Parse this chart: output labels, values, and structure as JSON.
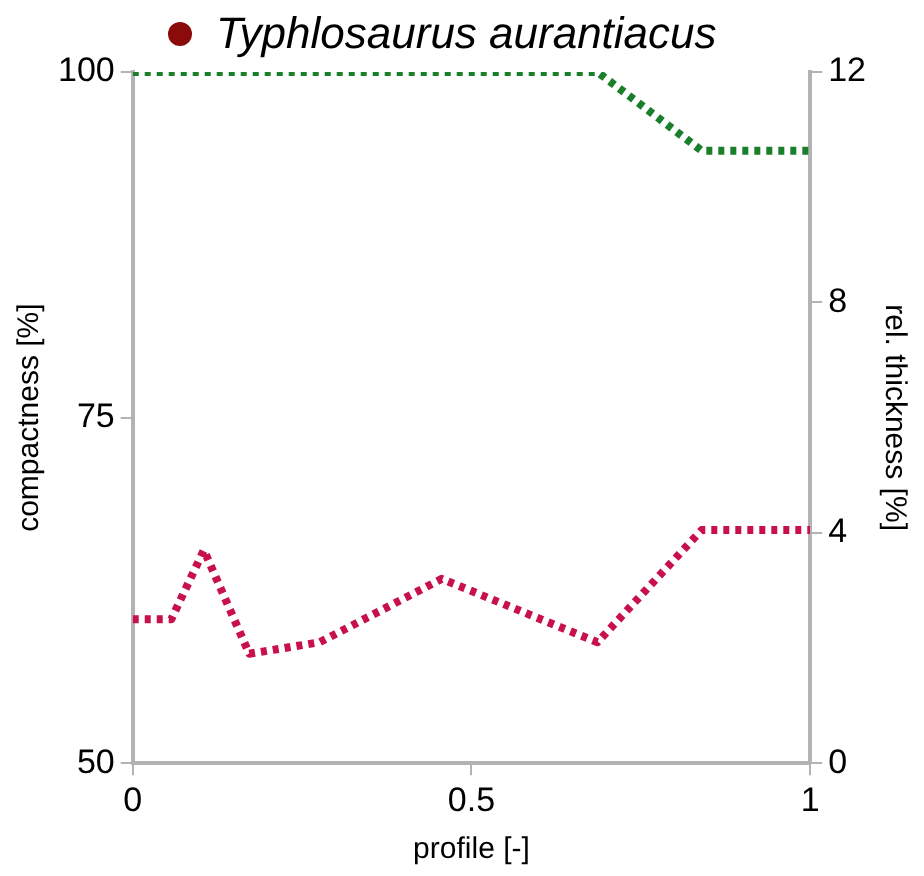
{
  "chart_data": {
    "type": "line",
    "title": "Typhlosaurus aurantiacus",
    "xlabel": "profile [-]",
    "ylabel": "compactness [%]",
    "y2label": "rel. thickness [%]",
    "xlim": [
      0,
      1
    ],
    "xticks": [
      0,
      0.5,
      1
    ],
    "ylim": [
      50,
      100
    ],
    "yticks": [
      50,
      75,
      100
    ],
    "y2lim": [
      0,
      12
    ],
    "y2ticks": [
      0,
      4,
      8,
      12
    ],
    "grid": false,
    "line_style": "dotted",
    "marker": "none",
    "series": [
      {
        "color": "#1a7f2a",
        "x": [
          0,
          0.686,
          0.84,
          1
        ],
        "values": [
          100,
          100,
          94.3,
          94.3
        ]
      },
      {
        "color": "#c8104a",
        "axis": "y2",
        "x": [
          0,
          0.057,
          0.105,
          0.172,
          0.276,
          0.456,
          0.686,
          0.84,
          1
        ],
        "values": [
          2.5,
          2.5,
          3.7,
          1.9,
          2.1,
          3.2,
          2.1,
          4.05,
          4.05
        ]
      }
    ]
  }
}
